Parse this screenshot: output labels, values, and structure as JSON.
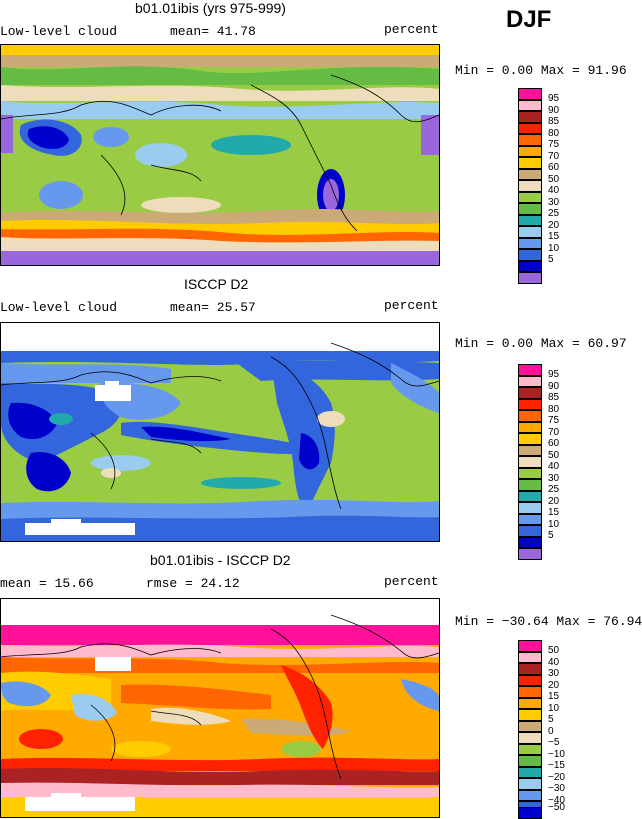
{
  "season": "DJF",
  "colors": {
    "abs_scale": [
      "#9966dd",
      "#0000cc",
      "#3366dd",
      "#6699ee",
      "#99ccee",
      "#22aaaa",
      "#66bb44",
      "#99cc44",
      "#eeddbb",
      "#ccaa77",
      "#ffcc00",
      "#ffaa00",
      "#ff6600",
      "#ff2200",
      "#aa2222",
      "#ffbbcc",
      "#ff1199"
    ],
    "diff_scale": [
      "#9966dd",
      "#0000cc",
      "#3366dd",
      "#6699ee",
      "#99ccee",
      "#22aaaa",
      "#66bb44",
      "#99cc44",
      "#eeddbb",
      "#ccaa77",
      "#ffcc00",
      "#ffaa00",
      "#ff6600",
      "#ff2200",
      "#aa2222",
      "#ffbbcc",
      "#ff1199"
    ]
  },
  "panels": [
    {
      "title": "b01.01ibis (yrs 975-999)",
      "left_label": "Low-level cloud",
      "stat_label": "mean=  41.78",
      "unit": "percent",
      "minmax": "Min =    0.00 Max =   91.96",
      "legend": [
        "5",
        "10",
        "15",
        "20",
        "25",
        "30",
        "40",
        "50",
        "60",
        "70",
        "75",
        "80",
        "85",
        "90",
        "95"
      ]
    },
    {
      "title": "ISCCP D2",
      "left_label": "Low-level cloud",
      "stat_label": "mean=  25.57",
      "unit": "percent",
      "minmax": "Min =    0.00 Max =   60.97",
      "legend": [
        "5",
        "10",
        "15",
        "20",
        "25",
        "30",
        "40",
        "50",
        "60",
        "70",
        "75",
        "80",
        "85",
        "90",
        "95"
      ]
    },
    {
      "title": "b01.01ibis - ISCCP D2",
      "left_label": "mean =   15.66",
      "stat_label": "rmse =   24.12",
      "unit": "percent",
      "minmax": "Min = −30.64 Max =   76.94",
      "legend": [
        "−50",
        "−40",
        "−30",
        "−20",
        "−15",
        "−10",
        "−5",
        "0",
        "5",
        "10",
        "15",
        "20",
        "30",
        "40",
        "50"
      ]
    }
  ]
}
